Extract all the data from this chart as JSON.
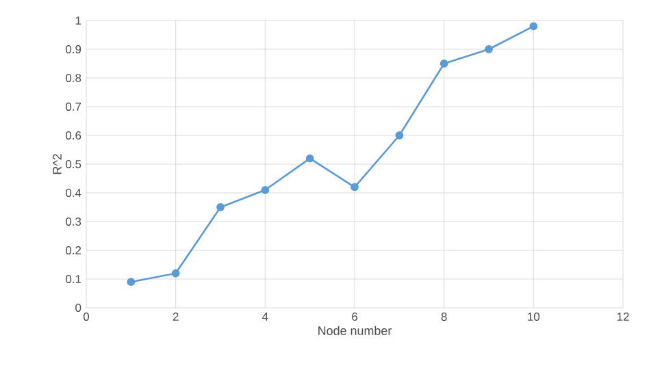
{
  "chart_data": {
    "type": "line",
    "xlabel": "Node number",
    "ylabel": "R^2",
    "x": [
      1,
      2,
      3,
      4,
      5,
      6,
      7,
      8,
      9,
      10
    ],
    "series": [
      {
        "color": "#5b9bd5",
        "values": [
          0.09,
          0.12,
          0.35,
          0.41,
          0.52,
          0.42,
          0.6,
          0.85,
          0.9,
          0.98
        ]
      }
    ],
    "xlim": [
      0,
      12
    ],
    "xticks": [
      0,
      2,
      4,
      6,
      8,
      10,
      12
    ],
    "ylim": [
      0,
      1
    ],
    "yticks": [
      0,
      0.1,
      0.2,
      0.3,
      0.4,
      0.5,
      0.6,
      0.7,
      0.8,
      0.9,
      1
    ],
    "grid": true,
    "marker": "circle",
    "line_style": "solid"
  }
}
